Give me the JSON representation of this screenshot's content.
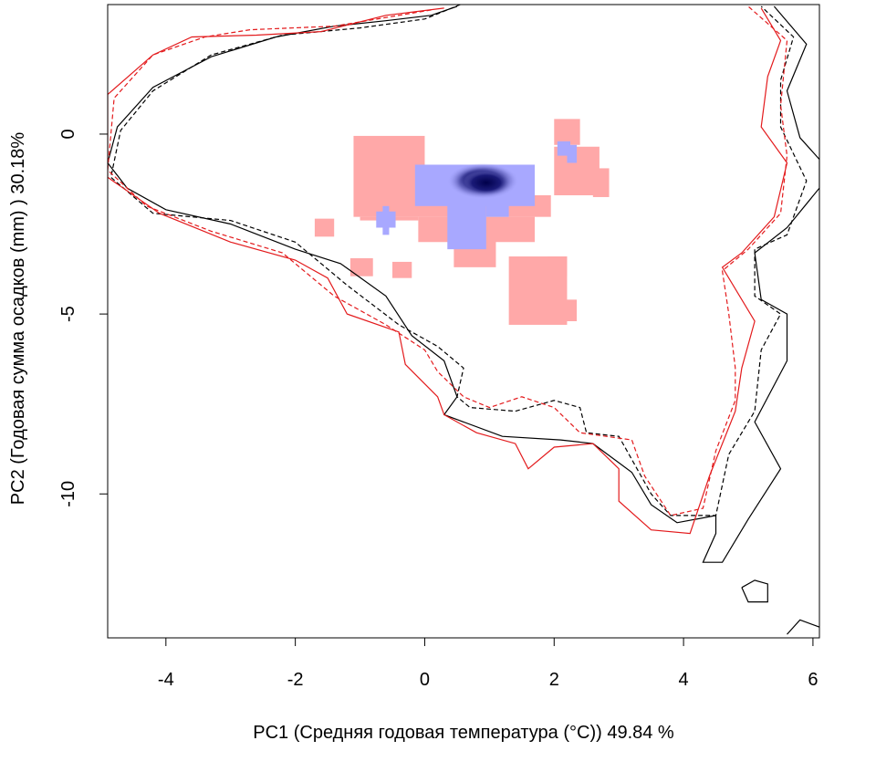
{
  "chart_data": {
    "type": "heatmap",
    "xlabel": "PC1 (Средняя годовая температура (°C)) 49.84 %",
    "ylabel": "PC2 (Годовая сумма осадков  (mm) ) 30.18%",
    "xlim": [
      -4.9,
      6.1
    ],
    "ylim": [
      -14.0,
      3.6
    ],
    "x_ticks": [
      -4,
      -2,
      0,
      2,
      4,
      6
    ],
    "y_ticks": [
      0,
      -5,
      -10
    ],
    "x_tick_labels": [
      "-4",
      "-2",
      "0",
      "2",
      "4",
      "6"
    ],
    "y_tick_labels": [
      "0",
      "-5",
      "-10"
    ],
    "grid": false,
    "colors": {
      "overlap_fill": "#ffa8a8",
      "blue_light": "#a8a8ff",
      "blue_dark": "#00004a",
      "contour_black": "#000000",
      "contour_red": "#e31a1c"
    },
    "niche_cells": {
      "cell_width": 0.11,
      "cell_height": 0.17,
      "pink_rects": [
        [
          -1.1,
          0.0,
          -1.7,
          -0.05
        ],
        [
          -1.1,
          1.95,
          -2.3,
          -1.7
        ],
        [
          -1.0,
          -0.1,
          -2.4,
          -2.3
        ],
        [
          -0.1,
          1.7,
          -3.0,
          -2.3
        ],
        [
          0.45,
          1.1,
          -3.7,
          -2.9
        ],
        [
          2.0,
          2.4,
          -0.3,
          0.42
        ],
        [
          2.0,
          2.7,
          -1.7,
          -0.35
        ],
        [
          2.6,
          2.85,
          -1.75,
          -0.95
        ],
        [
          -1.7,
          -1.4,
          -2.85,
          -2.35
        ],
        [
          -1.15,
          -0.8,
          -3.95,
          -3.45
        ],
        [
          -0.5,
          -0.2,
          -4.0,
          -3.55
        ],
        [
          1.3,
          2.2,
          -5.3,
          -3.4
        ],
        [
          1.9,
          2.2,
          -3.95,
          -3.4
        ],
        [
          2.1,
          2.35,
          -5.2,
          -4.6
        ]
      ],
      "blue_rects": [
        [
          -0.15,
          1.7,
          -2.0,
          -0.85
        ],
        [
          0.35,
          0.95,
          -3.2,
          -1.9
        ],
        [
          0.95,
          1.3,
          -2.3,
          -1.9
        ],
        [
          -0.75,
          -0.45,
          -2.6,
          -2.15
        ],
        [
          -0.65,
          -0.55,
          -2.8,
          -2.0
        ],
        [
          2.05,
          2.25,
          -0.6,
          -0.2
        ],
        [
          2.2,
          2.35,
          -0.8,
          -0.3
        ]
      ],
      "dark_core": [
        {
          "x": 0.9,
          "y": -1.3,
          "rx": 0.55,
          "ry": 0.5
        },
        {
          "x": 0.95,
          "y": -1.35,
          "rx": 0.4,
          "ry": 0.38
        }
      ]
    },
    "contours": [
      {
        "color": "#000000",
        "dash": false,
        "points": [
          [
            0.5,
            3.55
          ],
          [
            0.1,
            3.3
          ],
          [
            -0.6,
            3.15
          ],
          [
            -1.4,
            3.0
          ],
          [
            -2.3,
            2.7
          ],
          [
            -3.3,
            2.15
          ],
          [
            -4.2,
            1.3
          ],
          [
            -4.75,
            0.2
          ],
          [
            -4.9,
            -0.8
          ],
          [
            -4.6,
            -1.5
          ],
          [
            -4.0,
            -2.1
          ],
          [
            -3.0,
            -2.5
          ],
          [
            -2.0,
            -3.2
          ],
          [
            -1.3,
            -3.6
          ],
          [
            -0.6,
            -4.5
          ],
          [
            -0.2,
            -5.6
          ],
          [
            0.3,
            -6.3
          ],
          [
            0.5,
            -7.3
          ],
          [
            0.3,
            -7.8
          ],
          [
            0.6,
            -8.0
          ],
          [
            1.2,
            -8.4
          ],
          [
            2.1,
            -8.5
          ],
          [
            2.6,
            -8.6
          ],
          [
            3.2,
            -9.4
          ],
          [
            3.5,
            -10.3
          ],
          [
            3.9,
            -10.8
          ],
          [
            4.5,
            -10.6
          ],
          [
            4.5,
            -11.1
          ],
          [
            4.3,
            -11.9
          ],
          [
            4.6,
            -11.9
          ],
          [
            5.0,
            -10.7
          ],
          [
            5.5,
            -9.3
          ],
          [
            5.1,
            -8.0
          ],
          [
            5.6,
            -6.3
          ],
          [
            5.6,
            -5.0
          ],
          [
            5.2,
            -4.6
          ],
          [
            5.1,
            -3.3
          ],
          [
            5.6,
            -2.6
          ],
          [
            6.1,
            -1.5
          ],
          [
            6.1,
            -0.7
          ],
          [
            5.8,
            -0.1
          ],
          [
            5.6,
            1.2
          ],
          [
            5.9,
            2.5
          ],
          [
            5.4,
            3.55
          ]
        ]
      },
      {
        "color": "#000000",
        "dash": true,
        "points": [
          [
            0.55,
            3.6
          ],
          [
            0.0,
            3.2
          ],
          [
            -1.0,
            2.95
          ],
          [
            -2.2,
            2.75
          ],
          [
            -3.3,
            2.2
          ],
          [
            -4.2,
            1.2
          ],
          [
            -4.7,
            0.1
          ],
          [
            -4.85,
            -1.2
          ],
          [
            -4.2,
            -2.2
          ],
          [
            -3.0,
            -2.4
          ],
          [
            -2.0,
            -3.0
          ],
          [
            -1.2,
            -4.2
          ],
          [
            -0.4,
            -5.3
          ],
          [
            0.2,
            -5.9
          ],
          [
            0.6,
            -6.5
          ],
          [
            0.5,
            -7.3
          ],
          [
            0.7,
            -7.6
          ],
          [
            1.4,
            -7.7
          ],
          [
            2.0,
            -7.4
          ],
          [
            2.4,
            -7.6
          ],
          [
            2.5,
            -8.3
          ],
          [
            3.0,
            -8.4
          ],
          [
            3.5,
            -10.0
          ],
          [
            3.8,
            -10.6
          ],
          [
            4.5,
            -10.6
          ],
          [
            4.7,
            -8.9
          ],
          [
            5.1,
            -7.7
          ],
          [
            5.2,
            -6.0
          ],
          [
            5.5,
            -5.0
          ],
          [
            5.1,
            -4.5
          ],
          [
            5.1,
            -3.2
          ],
          [
            5.6,
            -2.8
          ],
          [
            5.9,
            -1.3
          ],
          [
            5.5,
            0.2
          ],
          [
            5.5,
            1.5
          ],
          [
            5.7,
            2.7
          ],
          [
            5.2,
            3.55
          ]
        ]
      },
      {
        "color": "#e31a1c",
        "dash": false,
        "points": [
          [
            0.3,
            3.5
          ],
          [
            -0.6,
            3.3
          ],
          [
            -1.6,
            2.85
          ],
          [
            -2.6,
            2.75
          ],
          [
            -3.6,
            2.7
          ],
          [
            -4.2,
            2.2
          ],
          [
            -4.9,
            1.1
          ],
          [
            -4.9,
            -1.2
          ],
          [
            -4.1,
            -2.2
          ],
          [
            -3.0,
            -3.0
          ],
          [
            -2.0,
            -3.5
          ],
          [
            -1.5,
            -4.0
          ],
          [
            -1.2,
            -5.0
          ],
          [
            -0.4,
            -5.5
          ],
          [
            -0.3,
            -6.4
          ],
          [
            0.2,
            -7.3
          ],
          [
            0.3,
            -7.8
          ],
          [
            0.8,
            -8.3
          ],
          [
            1.4,
            -8.6
          ],
          [
            1.6,
            -9.3
          ],
          [
            2.0,
            -8.7
          ],
          [
            2.6,
            -8.6
          ],
          [
            3.0,
            -9.3
          ],
          [
            3.0,
            -10.2
          ],
          [
            3.5,
            -11.0
          ],
          [
            4.1,
            -11.1
          ],
          [
            4.4,
            -9.5
          ],
          [
            4.8,
            -7.7
          ],
          [
            4.9,
            -6.5
          ],
          [
            5.1,
            -5.2
          ],
          [
            4.6,
            -3.7
          ],
          [
            4.9,
            -3.3
          ],
          [
            5.4,
            -2.3
          ],
          [
            5.6,
            -0.8
          ],
          [
            5.2,
            0.2
          ],
          [
            5.3,
            1.6
          ],
          [
            5.5,
            2.6
          ],
          [
            5.2,
            3.5
          ]
        ]
      },
      {
        "color": "#e31a1c",
        "dash": true,
        "points": [
          [
            0.1,
            3.45
          ],
          [
            -1.4,
            3.0
          ],
          [
            -2.7,
            2.9
          ],
          [
            -3.4,
            2.7
          ],
          [
            -4.2,
            2.2
          ],
          [
            -4.8,
            1.0
          ],
          [
            -4.9,
            -1.0
          ],
          [
            -4.3,
            -2.0
          ],
          [
            -3.3,
            -2.7
          ],
          [
            -2.2,
            -3.3
          ],
          [
            -1.4,
            -4.5
          ],
          [
            -0.6,
            -5.3
          ],
          [
            0.0,
            -6.0
          ],
          [
            0.2,
            -6.6
          ],
          [
            0.6,
            -7.3
          ],
          [
            1.0,
            -7.6
          ],
          [
            1.5,
            -7.3
          ],
          [
            2.0,
            -7.6
          ],
          [
            2.4,
            -8.3
          ],
          [
            3.2,
            -8.5
          ],
          [
            3.4,
            -9.5
          ],
          [
            3.8,
            -10.6
          ],
          [
            4.3,
            -10.4
          ],
          [
            4.5,
            -8.8
          ],
          [
            4.8,
            -7.4
          ],
          [
            4.8,
            -6.5
          ],
          [
            4.7,
            -5.0
          ],
          [
            4.6,
            -3.8
          ],
          [
            5.0,
            -3.2
          ],
          [
            5.5,
            -2.2
          ],
          [
            5.6,
            -0.6
          ],
          [
            5.5,
            0.8
          ],
          [
            5.6,
            2.6
          ],
          [
            5.0,
            3.55
          ]
        ]
      },
      {
        "color": "#000000",
        "dash": false,
        "points": [
          [
            4.9,
            -12.6
          ],
          [
            5.1,
            -12.4
          ],
          [
            5.3,
            -12.5
          ],
          [
            5.3,
            -13.0
          ],
          [
            5.0,
            -13.0
          ],
          [
            4.9,
            -12.6
          ]
        ]
      },
      {
        "color": "#000000",
        "dash": false,
        "points": [
          [
            5.6,
            -13.9
          ],
          [
            5.8,
            -13.5
          ],
          [
            6.1,
            -13.7
          ]
        ]
      }
    ]
  }
}
